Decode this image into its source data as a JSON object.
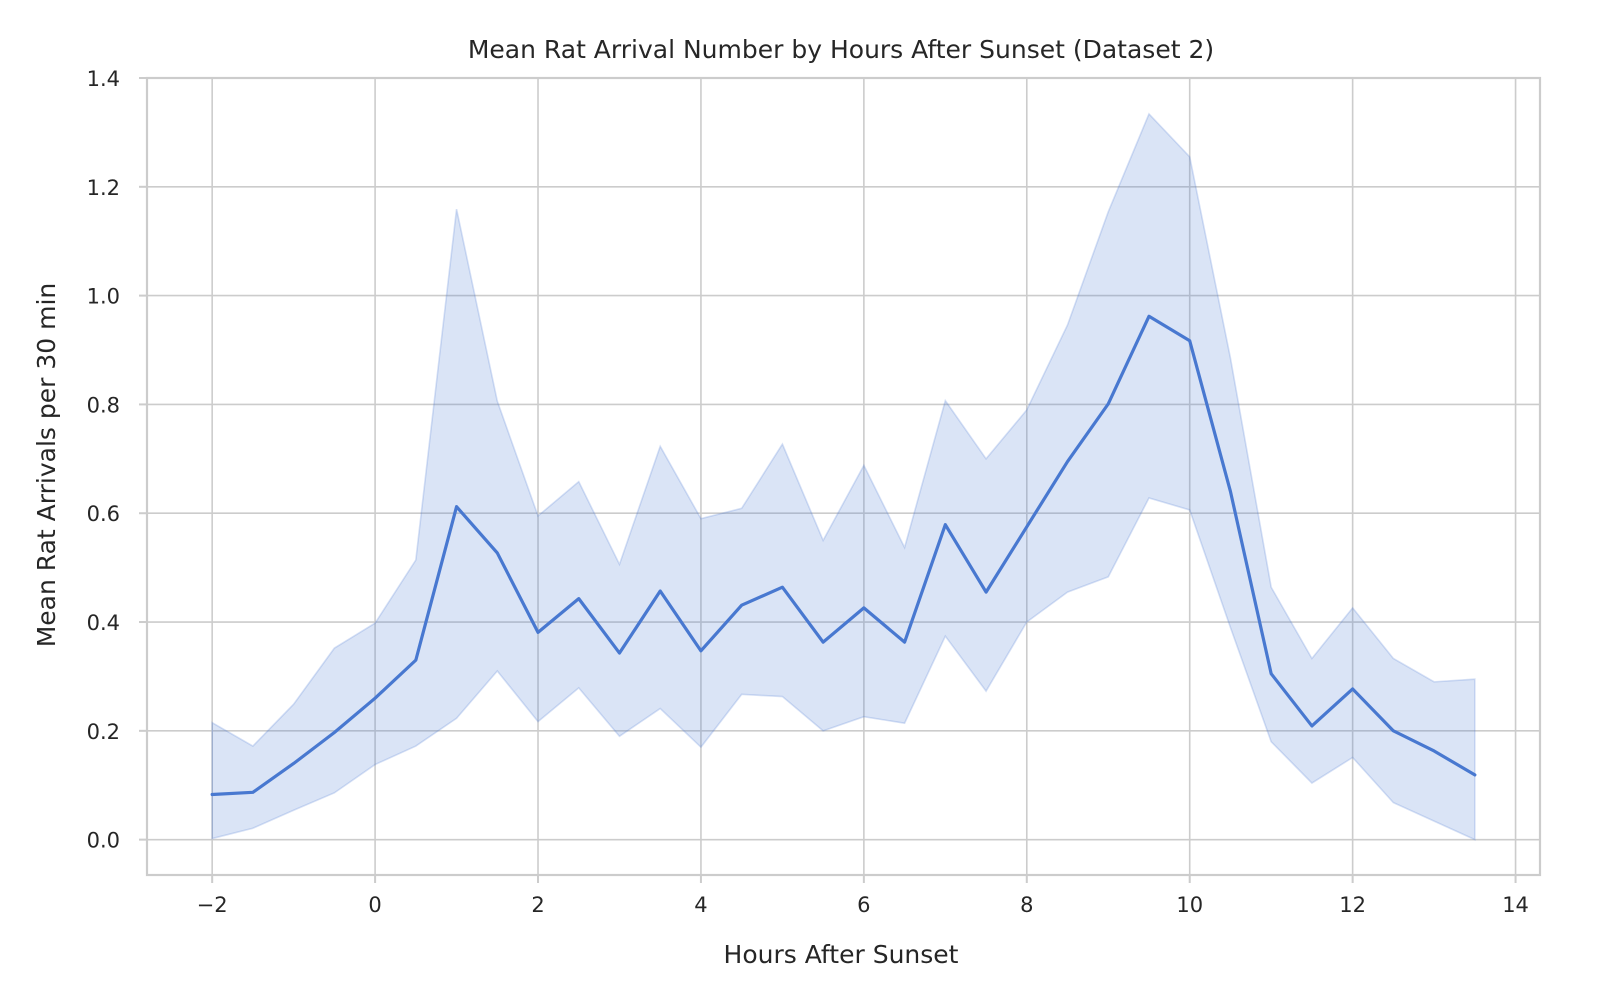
{
  "chart_data": {
    "type": "line",
    "title": "Mean Rat Arrival Number by Hours After Sunset (Dataset 2)",
    "xlabel": "Hours After Sunset",
    "ylabel": "Mean Rat Arrivals per 30 min",
    "xlim": [
      -2.8,
      14.3
    ],
    "ylim": [
      -0.065,
      1.4
    ],
    "xticks": [
      -2,
      0,
      2,
      4,
      6,
      8,
      10,
      12,
      14
    ],
    "xtick_labels": [
      "−2",
      "0",
      "2",
      "4",
      "6",
      "8",
      "10",
      "12",
      "14"
    ],
    "yticks": [
      0.0,
      0.2,
      0.4,
      0.6,
      0.8,
      1.0,
      1.2,
      1.4
    ],
    "ytick_labels": [
      "0.0",
      "0.2",
      "0.4",
      "0.6",
      "0.8",
      "1.0",
      "1.2",
      "1.4"
    ],
    "grid": true,
    "colors": {
      "line": "#4878d0",
      "band": "#4878d0"
    },
    "series": [
      {
        "x": [
          -2,
          -1.5,
          -1,
          -0.5,
          0,
          0.5,
          1,
          1.5,
          2,
          2.5,
          3,
          3.5,
          4,
          4.5,
          5,
          5.5,
          6,
          6.5,
          7,
          7.5,
          8,
          8.5,
          9,
          9.5,
          10,
          10.5,
          11,
          11.5,
          12,
          12.5,
          13,
          13.5
        ],
        "y": [
          0.083,
          0.087,
          0.14,
          0.197,
          0.26,
          0.33,
          0.612,
          0.527,
          0.381,
          0.443,
          0.343,
          0.457,
          0.347,
          0.431,
          0.464,
          0.363,
          0.426,
          0.363,
          0.579,
          0.455,
          0.575,
          0.695,
          0.801,
          0.962,
          0.917,
          0.64,
          0.305,
          0.209,
          0.277,
          0.2,
          0.163,
          0.119
        ],
        "ci_lower": [
          0.002,
          0.021,
          0.054,
          0.086,
          0.138,
          0.172,
          0.223,
          0.31,
          0.217,
          0.279,
          0.19,
          0.241,
          0.17,
          0.267,
          0.263,
          0.2,
          0.226,
          0.214,
          0.374,
          0.273,
          0.4,
          0.455,
          0.483,
          0.628,
          0.606,
          0.39,
          0.18,
          0.104,
          0.151,
          0.068,
          0.034,
          0.0
        ],
        "ci_upper": [
          0.215,
          0.172,
          0.249,
          0.352,
          0.398,
          0.514,
          1.159,
          0.806,
          0.595,
          0.658,
          0.506,
          0.723,
          0.59,
          0.609,
          0.727,
          0.55,
          0.688,
          0.537,
          0.807,
          0.7,
          0.79,
          0.946,
          1.154,
          1.334,
          1.255,
          0.885,
          0.464,
          0.333,
          0.426,
          0.333,
          0.29,
          0.295
        ]
      }
    ]
  }
}
